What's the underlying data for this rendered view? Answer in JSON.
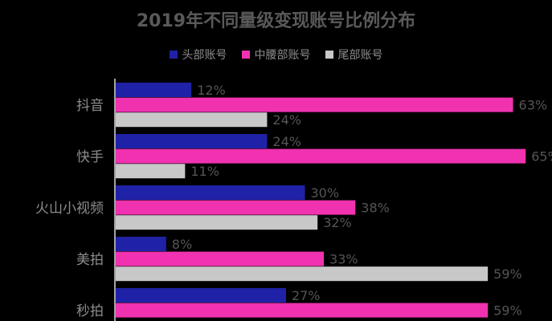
{
  "chart_data": {
    "type": "bar",
    "orientation": "horizontal",
    "title": "2019年不同量级变现账号比例分布",
    "categories": [
      "抖音",
      "快手",
      "火山小视频",
      "美拍",
      "秒拍"
    ],
    "series": [
      {
        "name": "头部账号",
        "color": "#1f22a6",
        "values": [
          12,
          24,
          30,
          8,
          27
        ]
      },
      {
        "name": "中腰部账号",
        "color": "#f032b0",
        "values": [
          63,
          65,
          38,
          33,
          59
        ]
      },
      {
        "name": "尾部账号",
        "color": "#c8c8c8",
        "values": [
          24,
          11,
          32,
          59,
          null
        ]
      }
    ],
    "value_suffix": "%",
    "xlim": [
      0,
      70
    ],
    "grid": false,
    "legend_position": "top"
  }
}
